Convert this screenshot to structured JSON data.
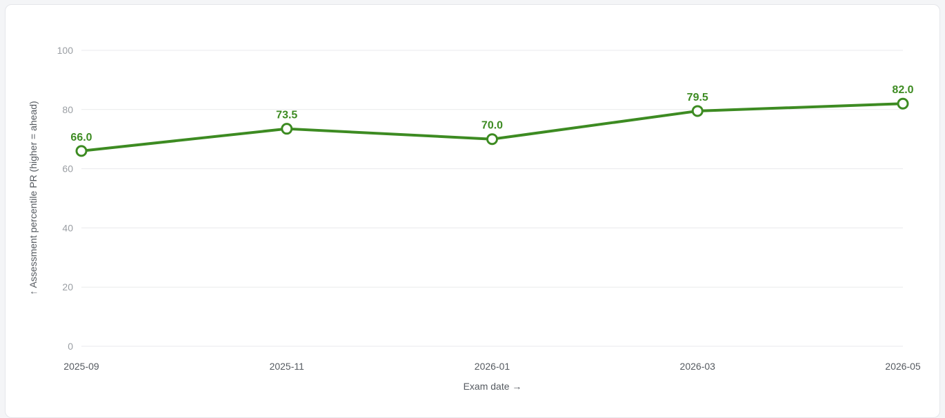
{
  "chart_data": {
    "type": "line",
    "x": [
      "2025-09",
      "2025-11",
      "2026-01",
      "2026-03",
      "2026-05"
    ],
    "series": [
      {
        "values": [
          66.0,
          73.5,
          70.0,
          79.5,
          82.0
        ],
        "data_labels": [
          "66.0",
          "73.5",
          "70.0",
          "79.5",
          "82.0"
        ]
      }
    ],
    "ylim": [
      0,
      100
    ],
    "yticks": [
      "0",
      "20",
      "40",
      "60",
      "80",
      "100"
    ],
    "xlabel": "Exam date →",
    "ylabel": "↑ Assessment percentile PR (higher = ahead)",
    "grid": true,
    "legend": "none",
    "colors": {
      "line": "#3d8b22",
      "point_fill": "#ffffff",
      "grid": "#e9eaec"
    }
  }
}
